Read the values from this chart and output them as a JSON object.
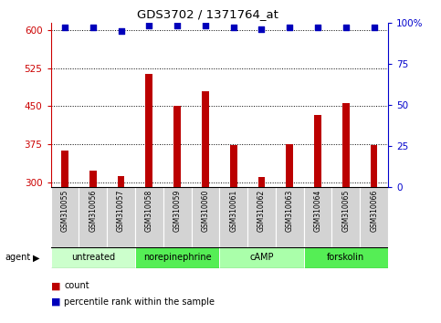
{
  "title": "GDS3702 / 1371764_at",
  "samples": [
    "GSM310055",
    "GSM310056",
    "GSM310057",
    "GSM310058",
    "GSM310059",
    "GSM310060",
    "GSM310061",
    "GSM310062",
    "GSM310063",
    "GSM310064",
    "GSM310065",
    "GSM310066"
  ],
  "counts": [
    362,
    323,
    313,
    513,
    450,
    480,
    373,
    310,
    376,
    432,
    457,
    374
  ],
  "percentile_ranks": [
    97,
    97,
    95,
    98,
    98,
    98,
    97,
    96,
    97,
    97,
    97,
    97
  ],
  "ylim_left": [
    290,
    615
  ],
  "ylim_right": [
    0,
    100
  ],
  "yticks_left": [
    300,
    375,
    450,
    525,
    600
  ],
  "yticks_right": [
    0,
    25,
    50,
    75,
    100
  ],
  "bar_color": "#bb0000",
  "scatter_color": "#0000bb",
  "agent_groups": [
    {
      "label": "untreated",
      "start": 0,
      "end": 3,
      "color": "#ccffcc"
    },
    {
      "label": "norepinephrine",
      "start": 3,
      "end": 6,
      "color": "#55ee55"
    },
    {
      "label": "cAMP",
      "start": 6,
      "end": 9,
      "color": "#aaffaa"
    },
    {
      "label": "forskolin",
      "start": 9,
      "end": 12,
      "color": "#55ee55"
    }
  ],
  "agent_label": "agent",
  "legend_count_label": "count",
  "legend_percentile_label": "percentile rank within the sample",
  "left_axis_color": "#cc0000",
  "right_axis_color": "#0000cc",
  "sample_bg_color": "#d3d3d3",
  "bar_width": 0.25,
  "scatter_size": 18
}
